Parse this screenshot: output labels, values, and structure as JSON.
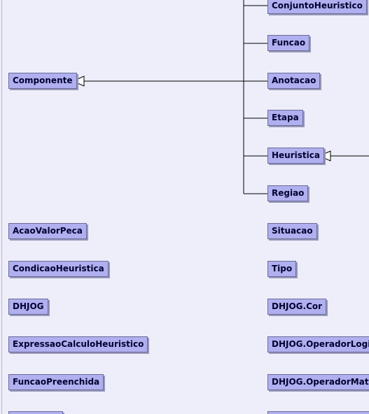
{
  "diagram": {
    "root": "Componente",
    "subclasses": [
      "ConjuntoHeuristico",
      "Funcao",
      "Anotacao",
      "Etapa",
      "Heuristica",
      "Regiao"
    ],
    "left_column": [
      "AcaoValorPeca",
      "CondicaoHeuristica",
      "DHJOG",
      "ExpressaoCalculoHeuristico",
      "FuncaoPreenchida"
    ],
    "right_column": [
      "Situacao",
      "Tipo",
      "DHJOG.Cor",
      "DHJOG.OperadorLogico",
      "DHJOG.OperadorMatematico"
    ]
  },
  "colors": {
    "background": "#eeeefa",
    "box_fill": "#b0b0f0",
    "box_border": "#6a6a9a",
    "line": "#000000"
  }
}
